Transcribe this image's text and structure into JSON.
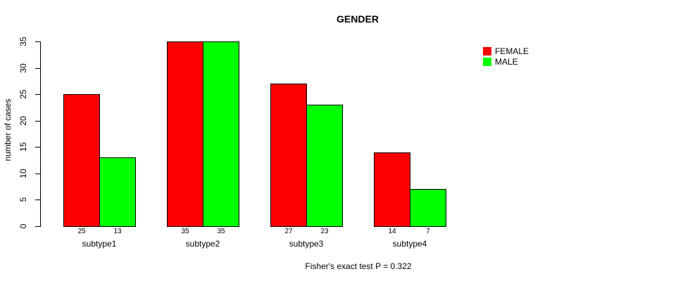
{
  "chart_data": {
    "type": "bar",
    "title": "GENDER",
    "ylabel": "number of cases",
    "xlabel": "",
    "categories": [
      "subtype1",
      "subtype2",
      "subtype3",
      "subtype4"
    ],
    "series": [
      {
        "name": "FEMALE",
        "color": "#FF0000",
        "values": [
          25,
          35,
          27,
          14
        ]
      },
      {
        "name": "MALE",
        "color": "#00FF00",
        "values": [
          13,
          35,
          23,
          7
        ]
      }
    ],
    "ylim": [
      0,
      35
    ],
    "yticks": [
      0,
      5,
      10,
      15,
      20,
      25,
      30,
      35
    ],
    "grid": "off",
    "legend_position": "top-right",
    "bar_value_labels": [
      [
        25,
        13
      ],
      [
        35,
        35
      ],
      [
        27,
        23
      ],
      [
        14,
        7
      ]
    ],
    "annotation": "Fisher's exact test P = 0.322"
  }
}
